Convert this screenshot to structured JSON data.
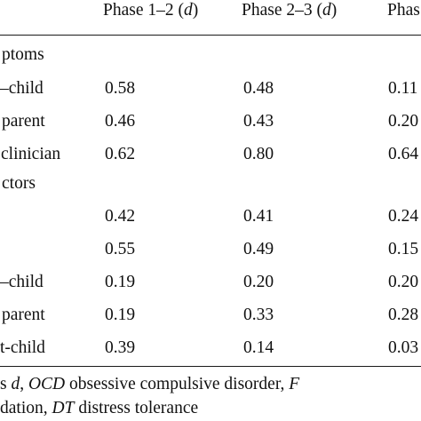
{
  "table": {
    "headers": [
      "Phase 1–2 (",
      "d",
      ")",
      "Phase 2–3 (",
      "d",
      ")",
      "Phas"
    ],
    "rows": [
      {
        "label": "ptoms",
        "c1": "",
        "c2": "",
        "c3": ""
      },
      {
        "label": "–child",
        "c1": "0.58",
        "c2": "0.48",
        "c3": "0.11"
      },
      {
        "label": "parent",
        "c1": "0.46",
        "c2": "0.43",
        "c3": "0.20"
      },
      {
        "label": "clinician",
        "c1": "0.62",
        "c2": "0.80",
        "c3": "0.64"
      },
      {
        "label": "ctors",
        "c1": "",
        "c2": "",
        "c3": ""
      },
      {
        "label": "",
        "c1": "0.42",
        "c2": "0.41",
        "c3": "0.24"
      },
      {
        "label": "",
        "c1": "0.55",
        "c2": "0.49",
        "c3": "0.15"
      },
      {
        "label": "–child",
        "c1": "0.19",
        "c2": "0.20",
        "c3": "0.20"
      },
      {
        "label": "parent",
        "c1": "0.19",
        "c2": "0.33",
        "c3": "0.28"
      },
      {
        "label": "t-child",
        "c1": "0.39",
        "c2": "0.14",
        "c3": "0.03"
      }
    ]
  },
  "footnote": {
    "line1": [
      "s ",
      "d",
      ", ",
      "OCD",
      " obsessive compulsive disorder, ",
      "F"
    ],
    "line2": [
      "dation, ",
      "DT",
      " distress tolerance"
    ]
  }
}
